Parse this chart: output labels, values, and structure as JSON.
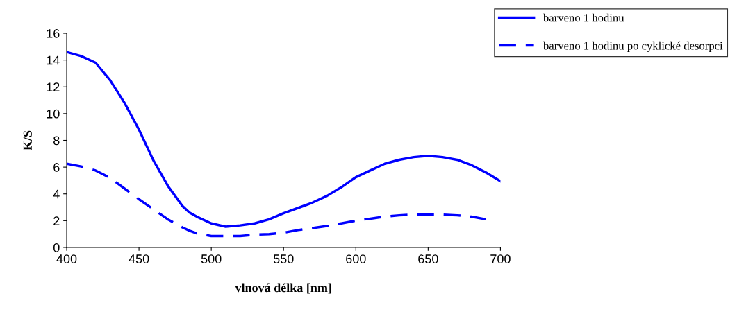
{
  "chart_data": {
    "type": "line",
    "xlabel": "vlnová délka [nm]",
    "ylabel": "K/S",
    "x": [
      400,
      410,
      420,
      430,
      440,
      450,
      460,
      470,
      480,
      485,
      490,
      500,
      510,
      520,
      530,
      540,
      550,
      560,
      570,
      580,
      590,
      600,
      610,
      620,
      630,
      640,
      650,
      660,
      670,
      680,
      690,
      700
    ],
    "series": [
      {
        "name": "barveno 1 hodinu",
        "color": "#0000ff",
        "line_style": "solid",
        "values": [
          14.6,
          14.3,
          13.8,
          12.5,
          10.8,
          8.8,
          6.5,
          4.6,
          3.1,
          2.6,
          2.3,
          1.8,
          1.55,
          1.65,
          1.8,
          2.1,
          2.55,
          2.95,
          3.35,
          3.85,
          4.5,
          5.25,
          5.75,
          6.25,
          6.55,
          6.75,
          6.85,
          6.75,
          6.55,
          6.15,
          5.6,
          4.95
        ]
      },
      {
        "name": "barveno 1 hodinu po cyklické desorpci",
        "color": "#0000ff",
        "line_style": "dashed",
        "values": [
          6.25,
          6.05,
          5.75,
          5.2,
          4.4,
          3.6,
          2.85,
          2.1,
          1.5,
          1.25,
          1.05,
          0.85,
          0.85,
          0.85,
          0.95,
          1.0,
          1.1,
          1.3,
          1.45,
          1.6,
          1.8,
          2.0,
          2.15,
          2.3,
          2.4,
          2.45,
          2.45,
          2.45,
          2.4,
          2.3,
          2.1,
          null
        ]
      }
    ],
    "xlim": [
      400,
      700
    ],
    "xticks": [
      400,
      450,
      500,
      550,
      600,
      650,
      700
    ],
    "ylim": [
      0,
      16
    ],
    "yticks": [
      0,
      2,
      4,
      6,
      8,
      10,
      12,
      14,
      16
    ],
    "grid": false,
    "legend": "top right",
    "marker": "none"
  }
}
